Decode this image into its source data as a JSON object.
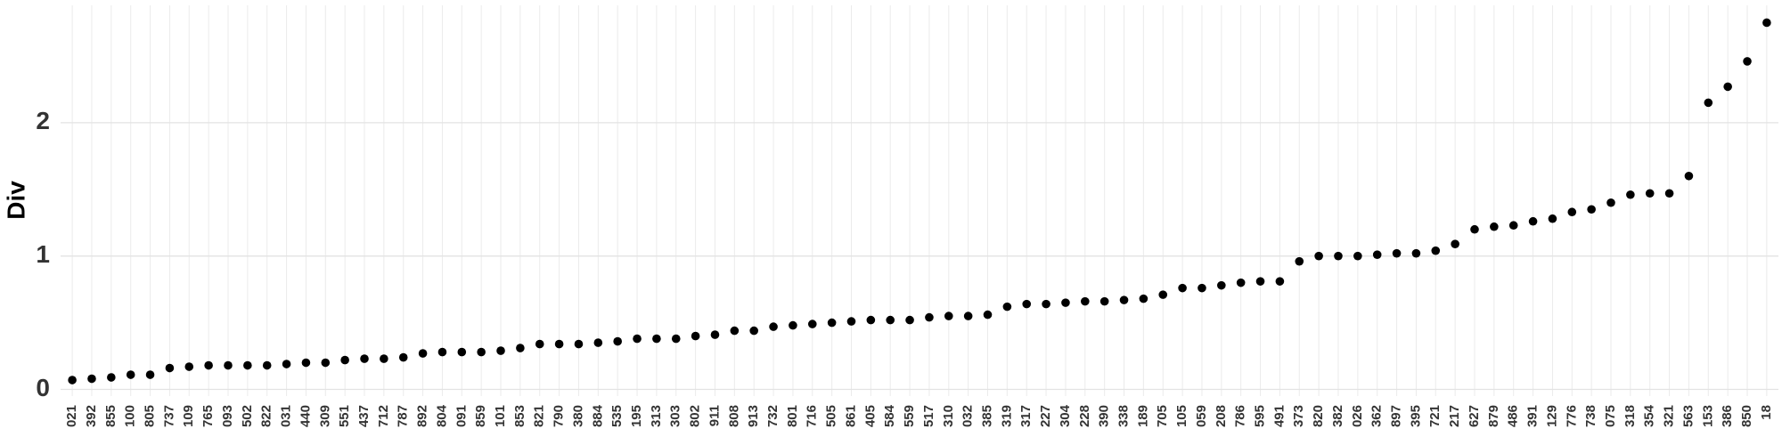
{
  "chart_data": {
    "type": "scatter",
    "y_label": "Div",
    "categories": [
      "021",
      "392",
      "855",
      "100",
      "805",
      "737",
      "109",
      "765",
      "093",
      "502",
      "822",
      "031",
      "440",
      "309",
      "551",
      "437",
      "712",
      "787",
      "892",
      "804",
      "091",
      "859",
      "101",
      "853",
      "821",
      "790",
      "380",
      "884",
      "535",
      "195",
      "313",
      "303",
      "802",
      "911",
      "808",
      "913",
      "732",
      "801",
      "716",
      "505",
      "861",
      "405",
      "584",
      "559",
      "517",
      "310",
      "032",
      "385",
      "319",
      "317",
      "227",
      "304",
      "228",
      "390",
      "338",
      "189",
      "705",
      "105",
      "059",
      "208",
      "786",
      "595",
      "491",
      "373",
      "820",
      "382",
      "026",
      "362",
      "897",
      "395",
      "721",
      "217",
      "627",
      "879",
      "486",
      "391",
      "129",
      "776",
      "738",
      "075",
      "318",
      "354",
      "321",
      "563",
      "153",
      "386",
      "850",
      "18"
    ],
    "values": [
      0.07,
      0.08,
      0.09,
      0.11,
      0.11,
      0.16,
      0.17,
      0.18,
      0.18,
      0.18,
      0.18,
      0.19,
      0.2,
      0.2,
      0.22,
      0.23,
      0.23,
      0.24,
      0.27,
      0.28,
      0.28,
      0.28,
      0.29,
      0.31,
      0.34,
      0.34,
      0.34,
      0.35,
      0.36,
      0.38,
      0.38,
      0.38,
      0.4,
      0.41,
      0.44,
      0.44,
      0.47,
      0.48,
      0.49,
      0.5,
      0.51,
      0.52,
      0.52,
      0.52,
      0.54,
      0.55,
      0.55,
      0.56,
      0.62,
      0.64,
      0.64,
      0.65,
      0.66,
      0.66,
      0.67,
      0.68,
      0.71,
      0.76,
      0.76,
      0.78,
      0.8,
      0.81,
      0.81,
      0.96,
      1.0,
      1.0,
      1.0,
      1.01,
      1.02,
      1.02,
      1.04,
      1.09,
      1.2,
      1.22,
      1.23,
      1.26,
      1.28,
      1.33,
      1.35,
      1.4,
      1.46,
      1.47,
      1.47,
      1.6,
      2.15,
      2.27,
      2.46,
      2.75
    ],
    "color": "#000000",
    "ylim": [
      -0.05,
      2.88
    ],
    "yticks": [
      0,
      1,
      2
    ],
    "grid": true
  }
}
